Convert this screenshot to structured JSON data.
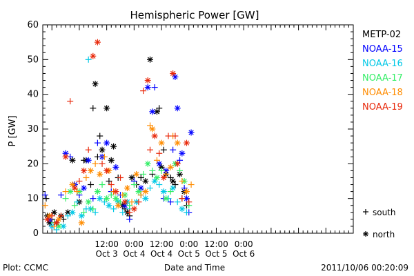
{
  "chart_data": {
    "type": "scatter",
    "title": "Hemispheric Power [GW]",
    "ylabel": "P [GW]",
    "xlabel": "Date and Time",
    "ylim": [
      0,
      60
    ],
    "yticks": [
      0,
      10,
      20,
      30,
      40,
      50,
      60
    ],
    "xlim_hours": [
      -16,
      120
    ],
    "xticks": [
      {
        "h": 12,
        "time": "12:00",
        "date": "Oct 3"
      },
      {
        "h": 24,
        "time": "0:00",
        "date": "Oct 4"
      },
      {
        "h": 36,
        "time": "12:00",
        "date": "Oct 4"
      },
      {
        "h": 48,
        "time": "0:00",
        "date": "Oct 5"
      },
      {
        "h": 60,
        "time": "12:00",
        "date": "Oct 5"
      },
      {
        "h": 72,
        "time": "0:00",
        "date": "Oct 6"
      }
    ],
    "legend": {
      "placement": "right"
    },
    "marker_legend": [
      {
        "marker": "+",
        "label": "south"
      },
      {
        "marker": "*",
        "label": "north"
      }
    ],
    "series": [
      {
        "name": "METP-02",
        "color": "#000000",
        "points": [
          [
            -14.5,
            10,
            "+"
          ],
          [
            -14,
            5,
            "*"
          ],
          [
            -13,
            3,
            "*"
          ],
          [
            -12,
            4,
            "+"
          ],
          [
            -11,
            6,
            "*"
          ],
          [
            -10,
            3,
            "+"
          ],
          [
            -8,
            5,
            "*"
          ],
          [
            -7,
            4,
            "+"
          ],
          [
            -5,
            6,
            "*"
          ],
          [
            -3,
            21,
            "*"
          ],
          [
            -2,
            14,
            "+"
          ],
          [
            0,
            9,
            "*"
          ],
          [
            2,
            21,
            "+"
          ],
          [
            3,
            21,
            "*"
          ],
          [
            5,
            14,
            "+"
          ],
          [
            6,
            36,
            "+"
          ],
          [
            7,
            43,
            "*"
          ],
          [
            8,
            22,
            "+"
          ],
          [
            9,
            28,
            "+"
          ],
          [
            10,
            24,
            "*"
          ],
          [
            12,
            36,
            "*"
          ],
          [
            13,
            15,
            "+"
          ],
          [
            14,
            21,
            "*"
          ],
          [
            15,
            25,
            "*"
          ],
          [
            17,
            16,
            "+"
          ],
          [
            19,
            8,
            "*"
          ],
          [
            20,
            7,
            "+"
          ],
          [
            21,
            6,
            "*"
          ],
          [
            22,
            5,
            "+"
          ],
          [
            23,
            16,
            "*"
          ],
          [
            25,
            14,
            "+"
          ],
          [
            27,
            16,
            "+"
          ],
          [
            29,
            15,
            "*"
          ],
          [
            31,
            50,
            "*"
          ],
          [
            32,
            17,
            "+"
          ],
          [
            34,
            35,
            "*"
          ],
          [
            35,
            36,
            "+"
          ],
          [
            36,
            19,
            "*"
          ],
          [
            37,
            24,
            "+"
          ],
          [
            38,
            17,
            "*"
          ],
          [
            40,
            16,
            "+"
          ],
          [
            41,
            15,
            "*"
          ],
          [
            42,
            14,
            "+"
          ],
          [
            44,
            17,
            "*"
          ],
          [
            45,
            10,
            "+"
          ],
          [
            46,
            12,
            "*"
          ],
          [
            47,
            8,
            "+"
          ]
        ]
      },
      {
        "name": "NOAA-15",
        "color": "#0000ff",
        "points": [
          [
            -15,
            11,
            "+"
          ],
          [
            -13,
            4,
            "*"
          ],
          [
            -12,
            2,
            "+"
          ],
          [
            -10,
            3,
            "*"
          ],
          [
            -8,
            11,
            "+"
          ],
          [
            -6,
            23,
            "*"
          ],
          [
            -4,
            22,
            "+"
          ],
          [
            -2,
            14,
            "*"
          ],
          [
            0,
            11,
            "+"
          ],
          [
            2,
            13,
            "*"
          ],
          [
            4,
            21,
            "*"
          ],
          [
            6,
            10,
            "+"
          ],
          [
            8,
            26,
            "+"
          ],
          [
            10,
            22,
            "*"
          ],
          [
            12,
            26,
            "*"
          ],
          [
            14,
            12,
            "+"
          ],
          [
            16,
            19,
            "*"
          ],
          [
            18,
            11,
            "+"
          ],
          [
            20,
            8,
            "*"
          ],
          [
            22,
            4,
            "+"
          ],
          [
            24,
            15,
            "+"
          ],
          [
            27,
            13,
            "*"
          ],
          [
            30,
            42,
            "*"
          ],
          [
            32,
            35,
            "*"
          ],
          [
            33,
            42,
            "+"
          ],
          [
            35,
            20,
            "*"
          ],
          [
            37,
            10,
            "+"
          ],
          [
            38,
            18,
            "*"
          ],
          [
            40,
            9,
            "+"
          ],
          [
            41,
            24,
            "+"
          ],
          [
            42,
            45,
            "*"
          ],
          [
            43,
            36,
            "*"
          ],
          [
            44,
            21,
            "+"
          ],
          [
            45,
            23,
            "*"
          ],
          [
            46,
            13,
            "+"
          ],
          [
            47,
            10,
            "*"
          ],
          [
            48,
            6,
            "+"
          ],
          [
            49,
            29,
            "*"
          ]
        ]
      },
      {
        "name": "NOAA-16",
        "color": "#00c8e6",
        "points": [
          [
            -12,
            2,
            "*"
          ],
          [
            -10,
            1,
            "+"
          ],
          [
            -7,
            2,
            "*"
          ],
          [
            -5,
            5,
            "+"
          ],
          [
            -3,
            6,
            "*"
          ],
          [
            -1,
            9,
            "+"
          ],
          [
            1,
            5,
            "*"
          ],
          [
            3,
            7,
            "+"
          ],
          [
            4,
            50,
            "+"
          ],
          [
            5,
            7,
            "*"
          ],
          [
            7,
            6,
            "+"
          ],
          [
            9,
            10,
            "*"
          ],
          [
            11,
            9,
            "+"
          ],
          [
            13,
            8,
            "*"
          ],
          [
            15,
            7,
            "+"
          ],
          [
            17,
            9,
            "*"
          ],
          [
            19,
            6,
            "+"
          ],
          [
            21,
            9,
            "*"
          ],
          [
            22,
            7,
            "+"
          ],
          [
            25,
            9,
            "*"
          ],
          [
            27,
            11,
            "+"
          ],
          [
            29,
            10,
            "*"
          ],
          [
            31,
            13,
            "+"
          ],
          [
            33,
            15,
            "*"
          ],
          [
            35,
            14,
            "+"
          ],
          [
            37,
            12,
            "*"
          ],
          [
            39,
            10,
            "+"
          ],
          [
            41,
            13,
            "*"
          ],
          [
            43,
            9,
            "+"
          ],
          [
            45,
            7,
            "*"
          ],
          [
            47,
            6,
            "+"
          ]
        ]
      },
      {
        "name": "NOAA-17",
        "color": "#33ee66",
        "points": [
          [
            -11,
            3,
            "+"
          ],
          [
            -9,
            2,
            "*"
          ],
          [
            -6,
            10,
            "+"
          ],
          [
            -4,
            12,
            "*"
          ],
          [
            -2,
            8,
            "+"
          ],
          [
            0,
            12,
            "*"
          ],
          [
            2,
            6,
            "+"
          ],
          [
            4,
            9,
            "*"
          ],
          [
            6,
            7,
            "+"
          ],
          [
            8,
            12,
            "*"
          ],
          [
            10,
            14,
            "+"
          ],
          [
            12,
            10,
            "*"
          ],
          [
            14,
            11,
            "+"
          ],
          [
            16,
            10,
            "*"
          ],
          [
            18,
            9,
            "+"
          ],
          [
            20,
            11,
            "*"
          ],
          [
            22,
            8,
            "+"
          ],
          [
            24,
            14,
            "+"
          ],
          [
            26,
            12,
            "*"
          ],
          [
            28,
            17,
            "+"
          ],
          [
            30,
            20,
            "*"
          ],
          [
            32,
            18,
            "+"
          ],
          [
            34,
            16,
            "*"
          ],
          [
            36,
            18,
            "+"
          ],
          [
            38,
            10,
            "*"
          ],
          [
            40,
            12,
            "+"
          ],
          [
            42,
            20,
            "*"
          ],
          [
            44,
            18,
            "+"
          ],
          [
            46,
            15,
            "*"
          ],
          [
            48,
            8,
            "+"
          ]
        ]
      },
      {
        "name": "NOAA-18",
        "color": "#ff8c00",
        "points": [
          [
            -15,
            8,
            "+"
          ],
          [
            -13,
            5,
            "*"
          ],
          [
            -11,
            2,
            "+"
          ],
          [
            -9,
            4,
            "*"
          ],
          [
            -6,
            12,
            "+"
          ],
          [
            -3,
            14,
            "*"
          ],
          [
            -1,
            12,
            "+"
          ],
          [
            1,
            3,
            "*"
          ],
          [
            3,
            16,
            "+"
          ],
          [
            5,
            18,
            "*"
          ],
          [
            7,
            20,
            "+"
          ],
          [
            9,
            17,
            "*"
          ],
          [
            11,
            22,
            "+"
          ],
          [
            13,
            18,
            "*"
          ],
          [
            15,
            12,
            "+"
          ],
          [
            17,
            8,
            "*"
          ],
          [
            19,
            11,
            "+"
          ],
          [
            21,
            13,
            "*"
          ],
          [
            23,
            9,
            "+"
          ],
          [
            25,
            17,
            "*"
          ],
          [
            27,
            11,
            "+"
          ],
          [
            29,
            12,
            "*"
          ],
          [
            31,
            31,
            "+"
          ],
          [
            32,
            30,
            "*"
          ],
          [
            34,
            21,
            "+"
          ],
          [
            36,
            26,
            "*"
          ],
          [
            38,
            17,
            "+"
          ],
          [
            40,
            19,
            "*"
          ],
          [
            41,
            28,
            "+"
          ],
          [
            43,
            26,
            "*"
          ],
          [
            45,
            15,
            "+"
          ],
          [
            47,
            12,
            "*"
          ],
          [
            49,
            14,
            "+"
          ]
        ]
      },
      {
        "name": "NOAA-19",
        "color": "#e8280a",
        "points": [
          [
            -14,
            4,
            "*"
          ],
          [
            -12,
            5,
            "+"
          ],
          [
            -10,
            3,
            "*"
          ],
          [
            -8,
            5,
            "+"
          ],
          [
            -6,
            22,
            "*"
          ],
          [
            -4,
            38,
            "+"
          ],
          [
            -2,
            13,
            "*"
          ],
          [
            0,
            15,
            "+"
          ],
          [
            2,
            18,
            "*"
          ],
          [
            4,
            24,
            "+"
          ],
          [
            6,
            51,
            "*"
          ],
          [
            8,
            55,
            "*"
          ],
          [
            10,
            20,
            "+"
          ],
          [
            12,
            18,
            "*"
          ],
          [
            14,
            14,
            "+"
          ],
          [
            16,
            12,
            "*"
          ],
          [
            18,
            16,
            "+"
          ],
          [
            20,
            9,
            "*"
          ],
          [
            22,
            6,
            "+"
          ],
          [
            24,
            7,
            "*"
          ],
          [
            26,
            9,
            "+"
          ],
          [
            28,
            41,
            "+"
          ],
          [
            30,
            44,
            "*"
          ],
          [
            31,
            24,
            "+"
          ],
          [
            33,
            28,
            "*"
          ],
          [
            35,
            23,
            "+"
          ],
          [
            37,
            16,
            "*"
          ],
          [
            39,
            28,
            "+"
          ],
          [
            41,
            46,
            "*"
          ],
          [
            42,
            28,
            "+"
          ],
          [
            43,
            20,
            "*"
          ],
          [
            45,
            10,
            "+"
          ],
          [
            47,
            26,
            "*"
          ],
          [
            48,
            9,
            "+"
          ]
        ]
      }
    ]
  },
  "footer": {
    "left": "Plot: CCMC",
    "right": "2011/10/06 00:20:09"
  }
}
